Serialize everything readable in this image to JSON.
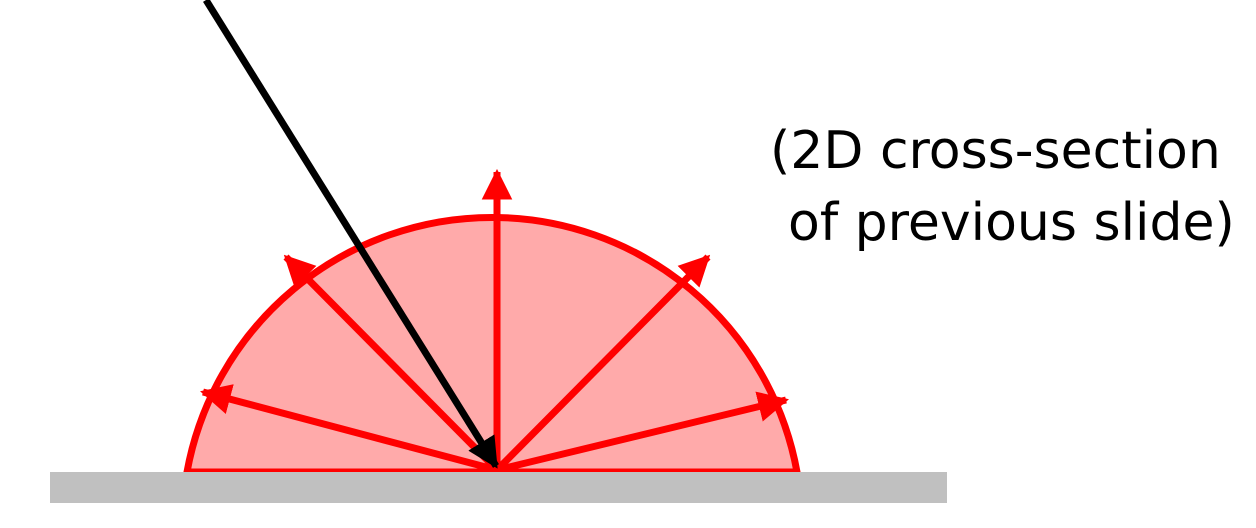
{
  "caption": {
    "line1": "(2D cross-section",
    "line2": "of previous slide)"
  },
  "colors": {
    "surface": "#c0c0c0",
    "hemisphere_fill": "#ffaaaa",
    "hemisphere_stroke": "#ff0000",
    "reflected_rays": "#ff0000",
    "incident_ray": "#000000"
  }
}
